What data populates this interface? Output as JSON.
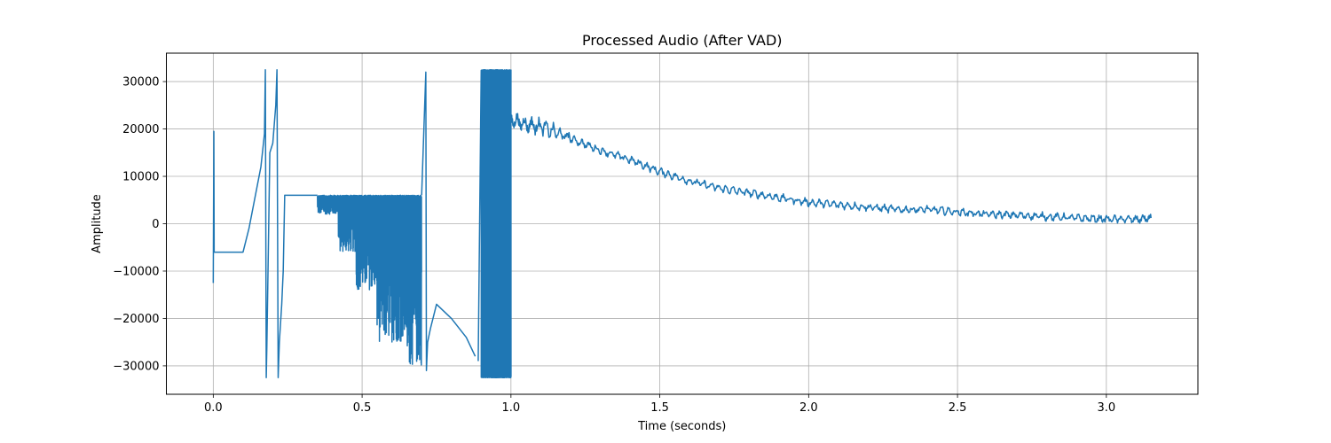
{
  "chart_data": {
    "type": "line",
    "title": "Processed Audio (After VAD)",
    "xlabel": "Time (seconds)",
    "ylabel": "Amplitude",
    "xlim": [
      -0.1575,
      3.3075
    ],
    "ylim": [
      -36000,
      36000
    ],
    "xticks": [
      0.0,
      0.5,
      1.0,
      1.5,
      2.0,
      2.5,
      3.0
    ],
    "xtick_labels": [
      "0.0",
      "0.5",
      "1.0",
      "1.5",
      "2.0",
      "2.5",
      "3.0"
    ],
    "yticks": [
      -30000,
      -20000,
      -10000,
      0,
      10000,
      20000,
      30000
    ],
    "ytick_labels": [
      "−30000",
      "−20000",
      "−10000",
      "0",
      "10000",
      "20000",
      "30000"
    ],
    "grid": true,
    "line_color": "#1f77b4",
    "series": [
      {
        "name": "",
        "segments": [
          {
            "x": [
              0.0,
              0.002,
              0.003,
              0.006,
              0.008
            ],
            "y": [
              -12500,
              19500,
              -6000,
              -6000,
              -6000
            ]
          },
          {
            "x": [
              0.008,
              0.1,
              0.12,
              0.16,
              0.172,
              0.175,
              0.178,
              0.18,
              0.19,
              0.2,
              0.21,
              0.214,
              0.218,
              0.222,
              0.23,
              0.235,
              0.24,
              0.245
            ],
            "y": [
              -6000,
              -6000,
              -1000,
              12000,
              19000,
              32500,
              -32500,
              -26000,
              15000,
              17000,
              25000,
              32500,
              -32500,
              -25000,
              -17000,
              -10000,
              6000,
              6000
            ]
          },
          {
            "x": [
              0.245,
              0.35
            ],
            "y": [
              6000,
              6000
            ]
          },
          {
            "x": [
              0.35,
              0.7
            ],
            "y": [
              6000,
              6000
            ],
            "noise_band": [
              [
                0.35,
                0.42,
                6000,
                2000
              ],
              [
                0.42,
                0.48,
                6000,
                -6000
              ],
              [
                0.48,
                0.55,
                6000,
                -14000
              ],
              [
                0.55,
                0.65,
                6000,
                -25000
              ],
              [
                0.65,
                0.7,
                6000,
                -30000
              ]
            ]
          },
          {
            "x": [
              0.7,
              0.714,
              0.716,
              0.72,
              0.73,
              0.75,
              0.8,
              0.85,
              0.88
            ],
            "y": [
              6000,
              32000,
              -31000,
              -25000,
              -22000,
              -17000,
              -20000,
              -24000,
              -28000
            ]
          },
          {
            "x": [
              0.89,
              0.9,
              1.0
            ],
            "y": [
              -32500,
              32500,
              -32500
            ],
            "dense": true
          },
          {
            "x": [
              1.0,
              1.05,
              1.1,
              1.2,
              1.3,
              1.4,
              1.5,
              1.6,
              1.7,
              1.8,
              1.9,
              2.0,
              2.1,
              2.2,
              2.3,
              2.4,
              2.5,
              2.6,
              2.7,
              2.8,
              2.9,
              3.0,
              3.1,
              3.15
            ],
            "y": [
              22000,
              21000,
              20500,
              18000,
              15500,
              13500,
              11000,
              9000,
              7500,
              6500,
              5500,
              4500,
              4000,
              3500,
              3000,
              3000,
              2500,
              2000,
              1800,
              1500,
              1200,
              1000,
              900,
              1200
            ]
          }
        ]
      }
    ]
  }
}
